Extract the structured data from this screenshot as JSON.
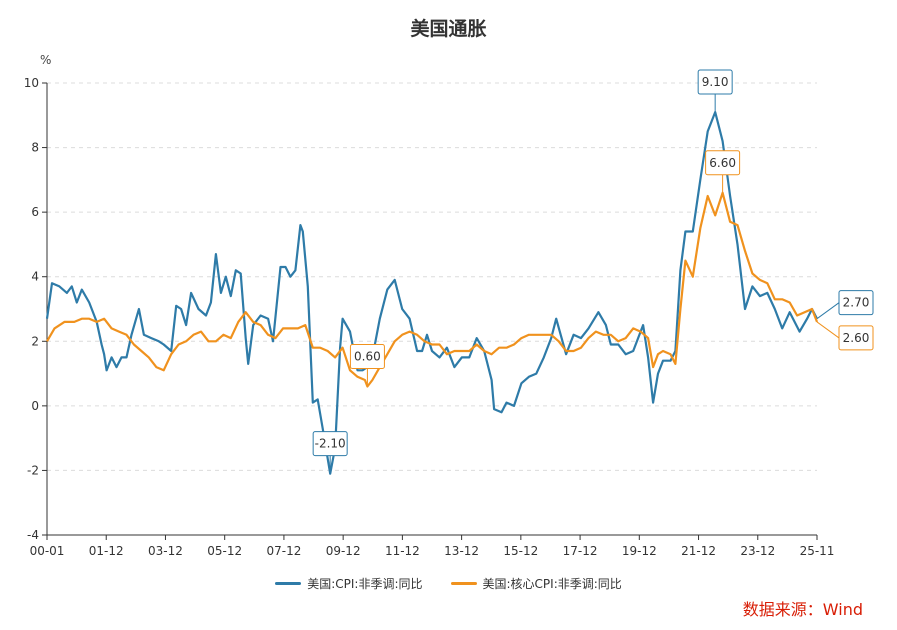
{
  "chart_data": {
    "type": "line",
    "title": "美国通胀",
    "ylabel": "%",
    "xlabel": "",
    "ylim": [
      -4,
      10
    ],
    "yticks": [
      "10",
      "8",
      "6",
      "4",
      "2",
      "0",
      "-2",
      "-4"
    ],
    "xticks": [
      "00-01",
      "01-12",
      "03-12",
      "05-12",
      "07-12",
      "09-12",
      "11-12",
      "13-12",
      "15-12",
      "17-12",
      "19-12",
      "21-12",
      "23-12",
      "25-11"
    ],
    "x_start": "2000-01",
    "x_end": "2025-11",
    "grid": true,
    "legend_position": "bottom",
    "series": [
      {
        "name": "美国:CPI:非季调:同比",
        "color": "#2e7ba8",
        "points": [
          [
            "2000-01",
            2.7
          ],
          [
            "2000-03",
            3.8
          ],
          [
            "2000-06",
            3.7
          ],
          [
            "2000-09",
            3.5
          ],
          [
            "2000-11",
            3.7
          ],
          [
            "2001-01",
            3.2
          ],
          [
            "2001-03",
            3.6
          ],
          [
            "2001-06",
            3.2
          ],
          [
            "2001-09",
            2.6
          ],
          [
            "2001-11",
            1.9
          ],
          [
            "2001-12",
            1.6
          ],
          [
            "2002-01",
            1.1
          ],
          [
            "2002-03",
            1.5
          ],
          [
            "2002-05",
            1.2
          ],
          [
            "2002-07",
            1.5
          ],
          [
            "2002-09",
            1.5
          ],
          [
            "2002-11",
            2.2
          ],
          [
            "2003-02",
            3.0
          ],
          [
            "2003-04",
            2.2
          ],
          [
            "2003-07",
            2.1
          ],
          [
            "2003-10",
            2.0
          ],
          [
            "2003-12",
            1.9
          ],
          [
            "2004-03",
            1.7
          ],
          [
            "2004-05",
            3.1
          ],
          [
            "2004-07",
            3.0
          ],
          [
            "2004-09",
            2.5
          ],
          [
            "2004-11",
            3.5
          ],
          [
            "2005-02",
            3.0
          ],
          [
            "2005-05",
            2.8
          ],
          [
            "2005-07",
            3.2
          ],
          [
            "2005-09",
            4.7
          ],
          [
            "2005-11",
            3.5
          ],
          [
            "2006-01",
            4.0
          ],
          [
            "2006-03",
            3.4
          ],
          [
            "2006-05",
            4.2
          ],
          [
            "2006-07",
            4.1
          ],
          [
            "2006-09",
            2.1
          ],
          [
            "2006-10",
            1.3
          ],
          [
            "2006-12",
            2.5
          ],
          [
            "2007-03",
            2.8
          ],
          [
            "2007-06",
            2.7
          ],
          [
            "2007-08",
            2.0
          ],
          [
            "2007-11",
            4.3
          ],
          [
            "2008-01",
            4.3
          ],
          [
            "2008-03",
            4.0
          ],
          [
            "2008-05",
            4.2
          ],
          [
            "2008-07",
            5.6
          ],
          [
            "2008-08",
            5.4
          ],
          [
            "2008-10",
            3.7
          ],
          [
            "2008-12",
            0.1
          ],
          [
            "2009-02",
            0.2
          ],
          [
            "2009-04",
            -0.7
          ],
          [
            "2009-07",
            -2.1
          ],
          [
            "2009-09",
            -1.3
          ],
          [
            "2009-11",
            1.8
          ],
          [
            "2009-12",
            2.7
          ],
          [
            "2010-03",
            2.3
          ],
          [
            "2010-06",
            1.1
          ],
          [
            "2010-08",
            1.1
          ],
          [
            "2010-10",
            1.2
          ],
          [
            "2010-12",
            1.5
          ],
          [
            "2011-03",
            2.7
          ],
          [
            "2011-06",
            3.6
          ],
          [
            "2011-09",
            3.9
          ],
          [
            "2011-12",
            3.0
          ],
          [
            "2012-03",
            2.7
          ],
          [
            "2012-06",
            1.7
          ],
          [
            "2012-08",
            1.7
          ],
          [
            "2012-10",
            2.2
          ],
          [
            "2012-12",
            1.7
          ],
          [
            "2013-03",
            1.5
          ],
          [
            "2013-06",
            1.8
          ],
          [
            "2013-09",
            1.2
          ],
          [
            "2013-12",
            1.5
          ],
          [
            "2014-03",
            1.5
          ],
          [
            "2014-06",
            2.1
          ],
          [
            "2014-09",
            1.7
          ],
          [
            "2014-12",
            0.8
          ],
          [
            "2015-01",
            -0.1
          ],
          [
            "2015-04",
            -0.2
          ],
          [
            "2015-06",
            0.1
          ],
          [
            "2015-09",
            0.0
          ],
          [
            "2015-12",
            0.7
          ],
          [
            "2016-03",
            0.9
          ],
          [
            "2016-06",
            1.0
          ],
          [
            "2016-09",
            1.5
          ],
          [
            "2016-12",
            2.1
          ],
          [
            "2017-02",
            2.7
          ],
          [
            "2017-06",
            1.6
          ],
          [
            "2017-09",
            2.2
          ],
          [
            "2017-12",
            2.1
          ],
          [
            "2018-03",
            2.4
          ],
          [
            "2018-07",
            2.9
          ],
          [
            "2018-10",
            2.5
          ],
          [
            "2018-12",
            1.9
          ],
          [
            "2019-03",
            1.9
          ],
          [
            "2019-06",
            1.6
          ],
          [
            "2019-09",
            1.7
          ],
          [
            "2019-12",
            2.3
          ],
          [
            "2020-01",
            2.5
          ],
          [
            "2020-03",
            1.5
          ],
          [
            "2020-05",
            0.1
          ],
          [
            "2020-07",
            1.0
          ],
          [
            "2020-09",
            1.4
          ],
          [
            "2020-12",
            1.4
          ],
          [
            "2021-02",
            1.7
          ],
          [
            "2021-04",
            4.2
          ],
          [
            "2021-06",
            5.4
          ],
          [
            "2021-09",
            5.4
          ],
          [
            "2021-12",
            7.0
          ],
          [
            "2022-03",
            8.5
          ],
          [
            "2022-06",
            9.1
          ],
          [
            "2022-09",
            8.2
          ],
          [
            "2022-12",
            6.5
          ],
          [
            "2023-03",
            5.0
          ],
          [
            "2023-06",
            3.0
          ],
          [
            "2023-09",
            3.7
          ],
          [
            "2023-12",
            3.4
          ],
          [
            "2024-03",
            3.5
          ],
          [
            "2024-06",
            3.0
          ],
          [
            "2024-09",
            2.4
          ],
          [
            "2024-12",
            2.9
          ],
          [
            "2025-04",
            2.3
          ],
          [
            "2025-07",
            2.7
          ],
          [
            "2025-09",
            3.0
          ],
          [
            "2025-11",
            2.7
          ]
        ]
      },
      {
        "name": "美国:核心CPI:非季调:同比",
        "color": "#f0921e",
        "points": [
          [
            "2000-01",
            2.0
          ],
          [
            "2000-04",
            2.4
          ],
          [
            "2000-08",
            2.6
          ],
          [
            "2000-12",
            2.6
          ],
          [
            "2001-03",
            2.7
          ],
          [
            "2001-06",
            2.7
          ],
          [
            "2001-09",
            2.6
          ],
          [
            "2001-12",
            2.7
          ],
          [
            "2002-03",
            2.4
          ],
          [
            "2002-06",
            2.3
          ],
          [
            "2002-09",
            2.2
          ],
          [
            "2002-12",
            1.9
          ],
          [
            "2003-03",
            1.7
          ],
          [
            "2003-06",
            1.5
          ],
          [
            "2003-09",
            1.2
          ],
          [
            "2003-12",
            1.1
          ],
          [
            "2004-03",
            1.6
          ],
          [
            "2004-06",
            1.9
          ],
          [
            "2004-09",
            2.0
          ],
          [
            "2004-12",
            2.2
          ],
          [
            "2005-03",
            2.3
          ],
          [
            "2005-06",
            2.0
          ],
          [
            "2005-09",
            2.0
          ],
          [
            "2005-12",
            2.2
          ],
          [
            "2006-03",
            2.1
          ],
          [
            "2006-06",
            2.6
          ],
          [
            "2006-09",
            2.9
          ],
          [
            "2006-12",
            2.6
          ],
          [
            "2007-03",
            2.5
          ],
          [
            "2007-06",
            2.2
          ],
          [
            "2007-09",
            2.1
          ],
          [
            "2007-12",
            2.4
          ],
          [
            "2008-03",
            2.4
          ],
          [
            "2008-06",
            2.4
          ],
          [
            "2008-09",
            2.5
          ],
          [
            "2008-12",
            1.8
          ],
          [
            "2009-03",
            1.8
          ],
          [
            "2009-06",
            1.7
          ],
          [
            "2009-09",
            1.5
          ],
          [
            "2009-12",
            1.8
          ],
          [
            "2010-03",
            1.1
          ],
          [
            "2010-06",
            0.9
          ],
          [
            "2010-09",
            0.8
          ],
          [
            "2010-10",
            0.6
          ],
          [
            "2010-12",
            0.8
          ],
          [
            "2011-03",
            1.2
          ],
          [
            "2011-06",
            1.6
          ],
          [
            "2011-09",
            2.0
          ],
          [
            "2011-12",
            2.2
          ],
          [
            "2012-03",
            2.3
          ],
          [
            "2012-06",
            2.2
          ],
          [
            "2012-09",
            2.0
          ],
          [
            "2012-12",
            1.9
          ],
          [
            "2013-03",
            1.9
          ],
          [
            "2013-06",
            1.6
          ],
          [
            "2013-09",
            1.7
          ],
          [
            "2013-12",
            1.7
          ],
          [
            "2014-03",
            1.7
          ],
          [
            "2014-06",
            1.9
          ],
          [
            "2014-09",
            1.7
          ],
          [
            "2014-12",
            1.6
          ],
          [
            "2015-03",
            1.8
          ],
          [
            "2015-06",
            1.8
          ],
          [
            "2015-09",
            1.9
          ],
          [
            "2015-12",
            2.1
          ],
          [
            "2016-03",
            2.2
          ],
          [
            "2016-06",
            2.2
          ],
          [
            "2016-09",
            2.2
          ],
          [
            "2016-12",
            2.2
          ],
          [
            "2017-03",
            2.0
          ],
          [
            "2017-06",
            1.7
          ],
          [
            "2017-09",
            1.7
          ],
          [
            "2017-12",
            1.8
          ],
          [
            "2018-03",
            2.1
          ],
          [
            "2018-06",
            2.3
          ],
          [
            "2018-09",
            2.2
          ],
          [
            "2018-12",
            2.2
          ],
          [
            "2019-03",
            2.0
          ],
          [
            "2019-06",
            2.1
          ],
          [
            "2019-09",
            2.4
          ],
          [
            "2019-12",
            2.3
          ],
          [
            "2020-03",
            2.1
          ],
          [
            "2020-05",
            1.2
          ],
          [
            "2020-07",
            1.6
          ],
          [
            "2020-09",
            1.7
          ],
          [
            "2020-12",
            1.6
          ],
          [
            "2021-02",
            1.3
          ],
          [
            "2021-04",
            3.0
          ],
          [
            "2021-06",
            4.5
          ],
          [
            "2021-09",
            4.0
          ],
          [
            "2021-12",
            5.5
          ],
          [
            "2022-03",
            6.5
          ],
          [
            "2022-06",
            5.9
          ],
          [
            "2022-09",
            6.6
          ],
          [
            "2022-12",
            5.7
          ],
          [
            "2023-03",
            5.6
          ],
          [
            "2023-06",
            4.8
          ],
          [
            "2023-09",
            4.1
          ],
          [
            "2023-12",
            3.9
          ],
          [
            "2024-03",
            3.8
          ],
          [
            "2024-06",
            3.3
          ],
          [
            "2024-09",
            3.3
          ],
          [
            "2024-12",
            3.2
          ],
          [
            "2025-03",
            2.8
          ],
          [
            "2025-06",
            2.9
          ],
          [
            "2025-09",
            3.0
          ],
          [
            "2025-11",
            2.6
          ]
        ]
      }
    ],
    "annotations": [
      {
        "label": "9.10",
        "series": 0,
        "at": "2022-06",
        "value": 9.1,
        "placement": "above"
      },
      {
        "label": "6.60",
        "series": 1,
        "at": "2022-09",
        "value": 6.6,
        "placement": "above"
      },
      {
        "label": "-2.10",
        "series": 0,
        "at": "2009-07",
        "value": -2.1,
        "placement": "above"
      },
      {
        "label": "0.60",
        "series": 1,
        "at": "2010-10",
        "value": 0.6,
        "placement": "above"
      },
      {
        "label": "2.70",
        "series": 0,
        "at": "2025-11",
        "value": 2.7,
        "placement": "right-up"
      },
      {
        "label": "2.60",
        "series": 1,
        "at": "2025-11",
        "value": 2.6,
        "placement": "right-down"
      }
    ]
  },
  "source": "数据来源：Wind"
}
